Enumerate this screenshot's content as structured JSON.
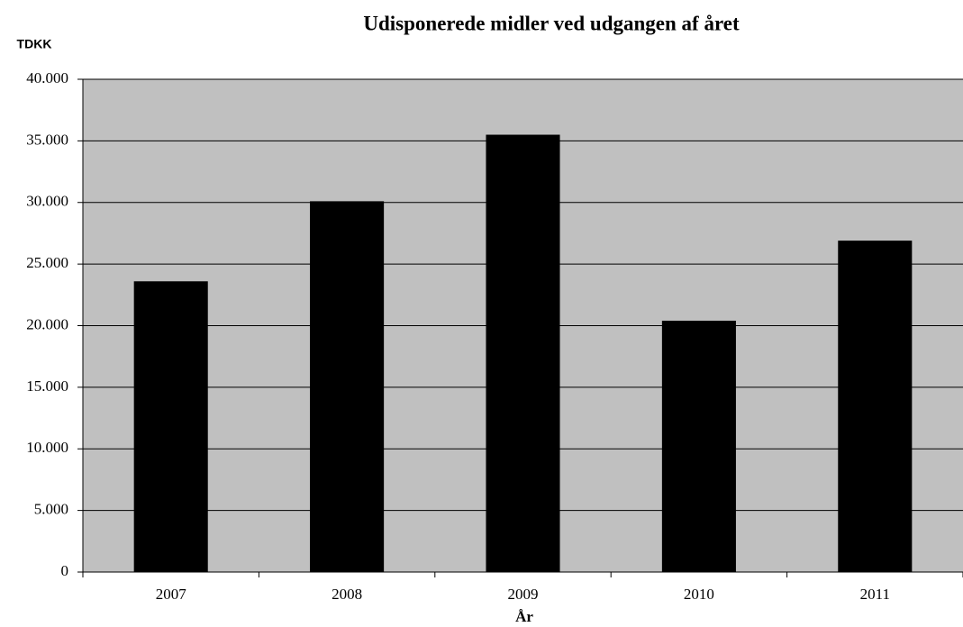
{
  "chart_data": {
    "type": "bar",
    "title": "Udisponerede midler ved udgangen af året",
    "y_label": "TDKK",
    "x_label": "År",
    "categories": [
      "2007",
      "2008",
      "2009",
      "2010",
      "2011"
    ],
    "values": [
      23600,
      30100,
      35500,
      20400,
      26900
    ],
    "color": "#000000",
    "ylim": [
      0,
      40000
    ],
    "yticks": [
      0,
      {
        "value": 5000,
        "label": "5.000"
      },
      {
        "value": 10000,
        "label": "10.000"
      },
      {
        "value": 15000,
        "label": "15.000"
      },
      {
        "value": 20000,
        "label": "20.000"
      },
      {
        "value": 25000,
        "label": "25.000"
      },
      {
        "value": 30000,
        "label": "30.000"
      },
      {
        "value": 35000,
        "label": "35.000"
      },
      {
        "value": 40000,
        "label": "40.000"
      }
    ],
    "grid": true
  }
}
